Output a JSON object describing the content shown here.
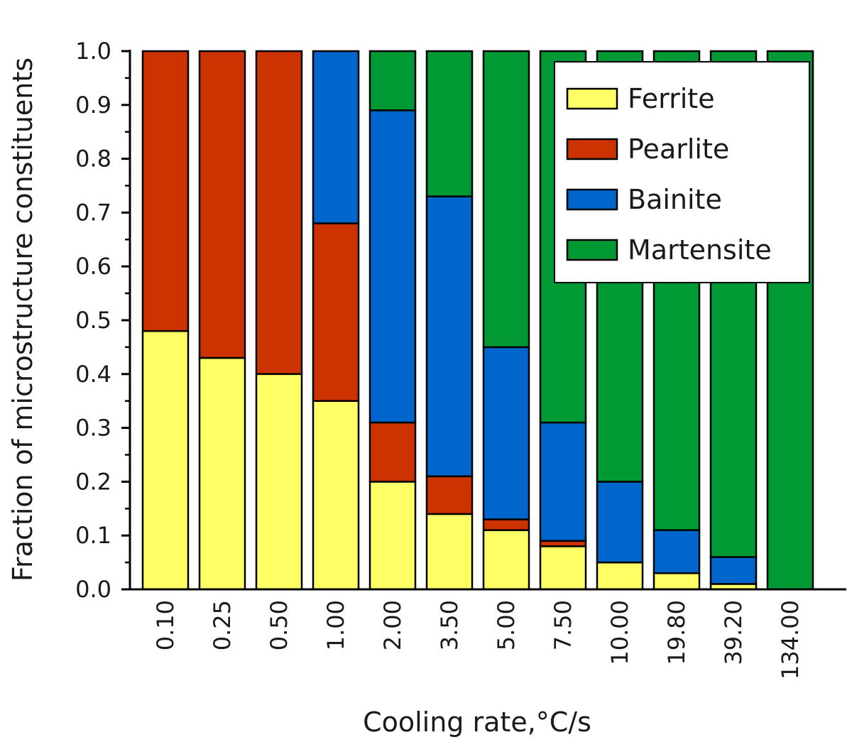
{
  "chart_data": {
    "type": "bar",
    "stacked": true,
    "title": "",
    "xlabel": "Cooling rate,°C/s",
    "ylabel": "Fraction of microstructure constituents",
    "ylim": [
      0,
      1.0
    ],
    "yticks": [
      "0.0",
      "0.1",
      "0.2",
      "0.3",
      "0.4",
      "0.5",
      "0.6",
      "0.7",
      "0.8",
      "0.9",
      "1.0"
    ],
    "categories": [
      "0.10",
      "0.25",
      "0.50",
      "1.00",
      "2.00",
      "3.50",
      "5.00",
      "7.50",
      "10.00",
      "19.80",
      "39.20",
      "134.00"
    ],
    "series": [
      {
        "name": "Ferrite",
        "color": "#ffff66",
        "values": [
          0.48,
          0.43,
          0.4,
          0.35,
          0.2,
          0.14,
          0.11,
          0.08,
          0.05,
          0.03,
          0.01,
          0.0
        ]
      },
      {
        "name": "Pearlite",
        "color": "#cc3300",
        "values": [
          0.52,
          0.57,
          0.6,
          0.33,
          0.11,
          0.07,
          0.02,
          0.01,
          0.0,
          0.0,
          0.0,
          0.0
        ]
      },
      {
        "name": "Bainite",
        "color": "#0066cc",
        "values": [
          0.0,
          0.0,
          0.0,
          0.32,
          0.58,
          0.52,
          0.32,
          0.22,
          0.15,
          0.08,
          0.05,
          0.0
        ]
      },
      {
        "name": "Martensite",
        "color": "#009933",
        "values": [
          0.0,
          0.0,
          0.0,
          0.0,
          0.11,
          0.27,
          0.55,
          0.69,
          0.8,
          0.89,
          0.94,
          1.0
        ]
      }
    ],
    "grid": false,
    "legend_position": "top-right"
  }
}
